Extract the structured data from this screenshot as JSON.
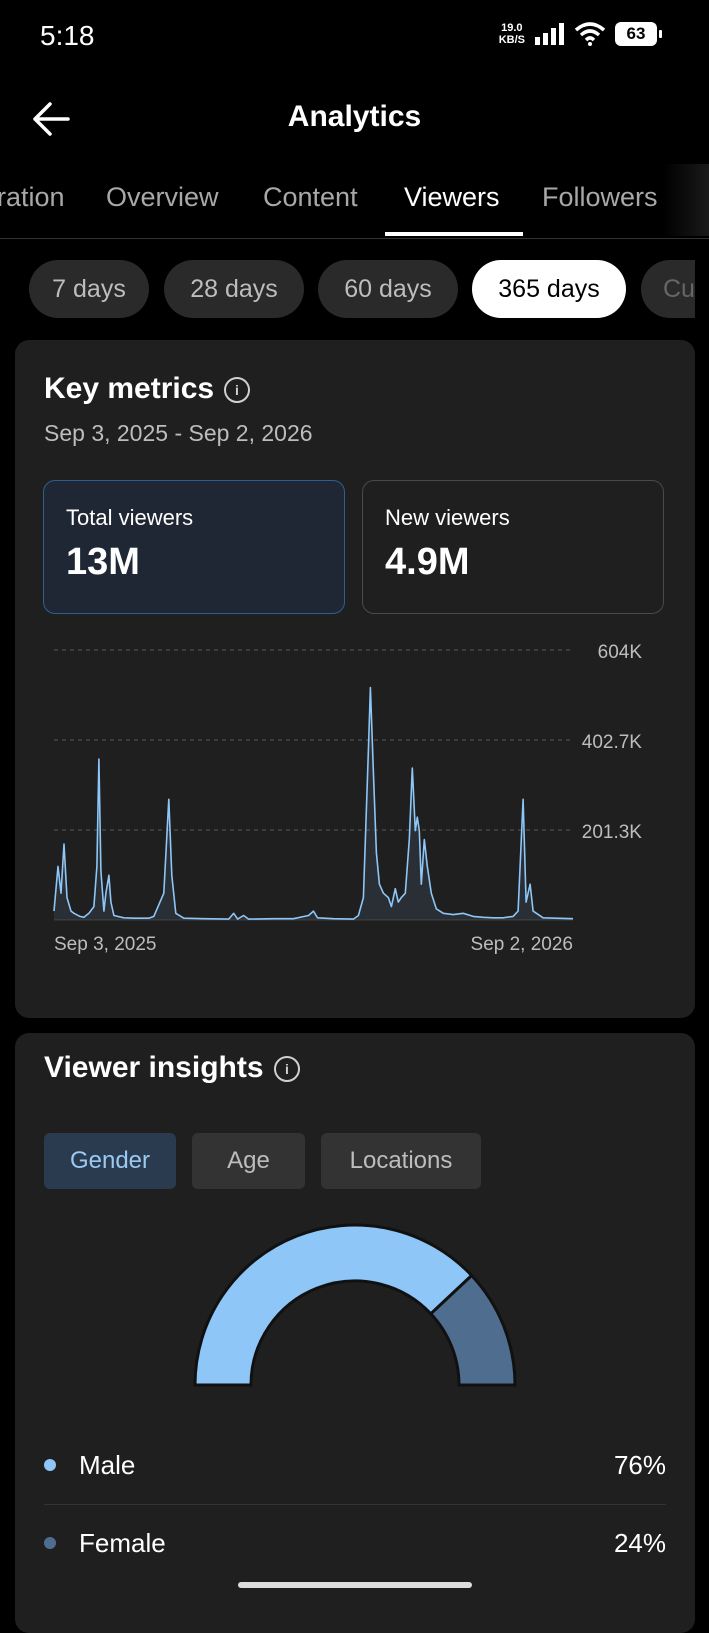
{
  "status": {
    "time": "5:18",
    "net_speed_value": "19.0",
    "net_speed_unit": "KB/S",
    "battery": "63"
  },
  "header": {
    "title": "Analytics",
    "back_icon": "arrow-left-icon"
  },
  "tabs": [
    {
      "label": "ration",
      "active": false
    },
    {
      "label": "Overview",
      "active": false
    },
    {
      "label": "Content",
      "active": false
    },
    {
      "label": "Viewers",
      "active": true
    },
    {
      "label": "Followers",
      "active": false
    }
  ],
  "ranges": [
    {
      "label": "7 days",
      "active": false
    },
    {
      "label": "28 days",
      "active": false
    },
    {
      "label": "60 days",
      "active": false
    },
    {
      "label": "365 days",
      "active": true
    },
    {
      "label": "Cu",
      "active": false
    }
  ],
  "key_metrics": {
    "title": "Key metrics",
    "date_range": "Sep 3, 2025 - Sep 2, 2026",
    "metrics": [
      {
        "label": "Total viewers",
        "value": "13M",
        "active": true
      },
      {
        "label": "New viewers",
        "value": "4.9M",
        "active": false
      }
    ]
  },
  "chart_data": {
    "type": "line",
    "series": [
      {
        "color": "#8ec6f7",
        "points": [
          [
            0,
            20000
          ],
          [
            4,
            120000
          ],
          [
            7,
            60000
          ],
          [
            10,
            170000
          ],
          [
            13,
            50000
          ],
          [
            17,
            20000
          ],
          [
            20,
            15000
          ],
          [
            26,
            8000
          ],
          [
            30,
            6000
          ],
          [
            35,
            15000
          ],
          [
            40,
            30000
          ],
          [
            43,
            120000
          ],
          [
            45,
            360000
          ],
          [
            47,
            110000
          ],
          [
            50,
            20000
          ],
          [
            52,
            60000
          ],
          [
            55,
            100000
          ],
          [
            57,
            40000
          ],
          [
            60,
            10000
          ],
          [
            70,
            5000
          ],
          [
            80,
            4000
          ],
          [
            95,
            4000
          ],
          [
            100,
            8000
          ],
          [
            110,
            60000
          ],
          [
            115,
            270000
          ],
          [
            118,
            100000
          ],
          [
            122,
            15000
          ],
          [
            130,
            4000
          ],
          [
            150,
            3000
          ],
          [
            175,
            2000
          ],
          [
            180,
            15000
          ],
          [
            184,
            2000
          ],
          [
            190,
            10000
          ],
          [
            195,
            2000
          ],
          [
            220,
            3000
          ],
          [
            240,
            3000
          ],
          [
            255,
            10000
          ],
          [
            260,
            20000
          ],
          [
            264,
            5000
          ],
          [
            280,
            3000
          ],
          [
            300,
            2000
          ],
          [
            305,
            10000
          ],
          [
            310,
            50000
          ],
          [
            315,
            380000
          ],
          [
            317,
            520000
          ],
          [
            320,
            330000
          ],
          [
            323,
            150000
          ],
          [
            326,
            80000
          ],
          [
            330,
            60000
          ],
          [
            335,
            50000
          ],
          [
            338,
            30000
          ],
          [
            342,
            70000
          ],
          [
            345,
            40000
          ],
          [
            348,
            50000
          ],
          [
            352,
            60000
          ],
          [
            356,
            180000
          ],
          [
            359,
            340000
          ],
          [
            362,
            200000
          ],
          [
            364,
            230000
          ],
          [
            366,
            200000
          ],
          [
            368,
            80000
          ],
          [
            371,
            180000
          ],
          [
            374,
            120000
          ],
          [
            378,
            60000
          ],
          [
            383,
            25000
          ],
          [
            390,
            15000
          ],
          [
            400,
            12000
          ],
          [
            410,
            15000
          ],
          [
            420,
            8000
          ],
          [
            430,
            6000
          ],
          [
            440,
            5000
          ],
          [
            450,
            5000
          ],
          [
            460,
            8000
          ],
          [
            465,
            20000
          ],
          [
            470,
            270000
          ],
          [
            473,
            40000
          ],
          [
            477,
            80000
          ],
          [
            480,
            20000
          ],
          [
            490,
            5000
          ],
          [
            520,
            3000
          ]
        ]
      }
    ],
    "y_ticks": [
      "604K",
      "402.7K",
      "201.3K"
    ],
    "y_tick_values": [
      604000,
      402700,
      201300
    ],
    "ylim": [
      0,
      604000
    ],
    "x_range": [
      0,
      520
    ],
    "x_labels": [
      "Sep 3, 2025",
      "Sep 2, 2026"
    ],
    "grid": true
  },
  "viewer_insights": {
    "title": "Viewer insights",
    "toggles": [
      {
        "label": "Gender",
        "active": true
      },
      {
        "label": "Age",
        "active": false
      },
      {
        "label": "Locations",
        "active": false
      }
    ],
    "gender": [
      {
        "label": "Male",
        "value": "76%",
        "fraction": 0.76,
        "color": "#8ec6f7"
      },
      {
        "label": "Female",
        "value": "24%",
        "fraction": 0.24,
        "color": "#4f6e8f"
      }
    ]
  }
}
